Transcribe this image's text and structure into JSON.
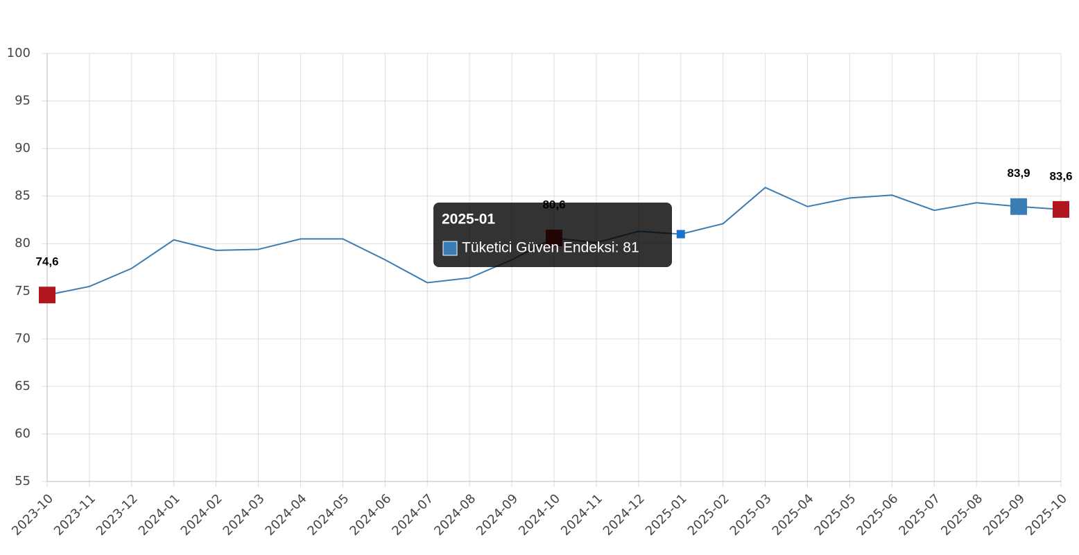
{
  "chart_data": {
    "type": "line",
    "categories": [
      "2023-10",
      "2023-11",
      "2023-12",
      "2024-01",
      "2024-02",
      "2024-03",
      "2024-04",
      "2024-05",
      "2024-06",
      "2024-07",
      "2024-08",
      "2024-09",
      "2024-10",
      "2024-11",
      "2024-12",
      "2025-01",
      "2025-02",
      "2025-03",
      "2025-04",
      "2025-05",
      "2025-06",
      "2025-07",
      "2025-08",
      "2025-09",
      "2025-10"
    ],
    "series": [
      {
        "name": "Tüketici Güven Endeksi",
        "color": "#3a7db5",
        "values": [
          74.6,
          75.5,
          77.4,
          80.4,
          79.3,
          79.4,
          80.5,
          80.5,
          78.3,
          75.9,
          76.4,
          78.3,
          80.6,
          80.1,
          81.3,
          81,
          82.1,
          85.9,
          83.9,
          84.8,
          85.1,
          83.5,
          84.3,
          83.9,
          83.6
        ],
        "value_labels": [
          "74,6",
          null,
          null,
          null,
          null,
          null,
          null,
          null,
          null,
          null,
          null,
          null,
          "80,6",
          null,
          null,
          null,
          null,
          null,
          null,
          null,
          null,
          null,
          null,
          "83,9",
          "83,6"
        ],
        "marker_colors": [
          "#b0161d",
          null,
          null,
          null,
          null,
          null,
          null,
          null,
          null,
          null,
          null,
          null,
          "#b0161d",
          null,
          null,
          "#1a73c4",
          null,
          null,
          null,
          null,
          null,
          null,
          null,
          "#3a7db5",
          "#b0161d"
        ]
      }
    ],
    "ylim": [
      55,
      100
    ],
    "yticks": [
      55,
      60,
      65,
      70,
      75,
      80,
      85,
      90,
      95,
      100
    ],
    "grid": true,
    "tooltip": {
      "title": "2025-01",
      "text": "Tüketici Güven Endeksi: 81",
      "index": 15
    }
  }
}
